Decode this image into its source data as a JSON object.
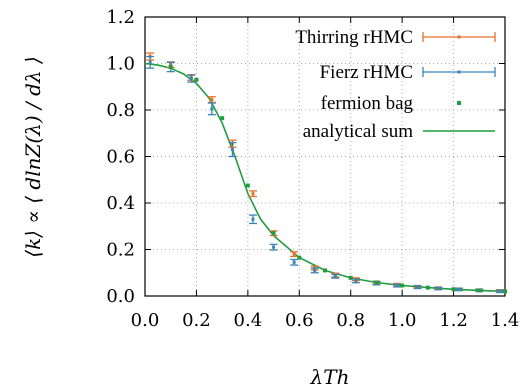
{
  "chart_data": {
    "type": "scatter",
    "xlabel": "λTh",
    "ylabel": "⟨k⟩ ∝ ⟨ dlnZ(λ) / dλ ⟩",
    "xlim": [
      0.0,
      1.4
    ],
    "ylim": [
      0.0,
      1.2
    ],
    "x_ticks": [
      "0.0",
      "0.2",
      "0.4",
      "0.6",
      "0.8",
      "1.0",
      "1.2",
      "1.4"
    ],
    "y_ticks": [
      "0.0",
      "0.2",
      "0.4",
      "0.6",
      "0.8",
      "1.0",
      "1.2"
    ],
    "grid": "dotted",
    "legend_position": "top-right",
    "series": [
      {
        "name": "Thirring rHMC",
        "kind": "errorbar",
        "color": "#e8702a",
        "x": [
          0.02,
          0.1,
          0.18,
          0.26,
          0.34,
          0.42,
          0.5,
          0.58,
          0.66,
          0.74,
          0.82,
          0.9,
          0.98,
          1.06,
          1.14,
          1.22,
          1.3,
          1.38
        ],
        "y": [
          1.03,
          0.995,
          0.94,
          0.845,
          0.655,
          0.44,
          0.27,
          0.18,
          0.12,
          0.09,
          0.072,
          0.058,
          0.048,
          0.04,
          0.034,
          0.029,
          0.025,
          0.022
        ],
        "err": [
          0.015,
          0.012,
          0.012,
          0.012,
          0.015,
          0.012,
          0.01,
          0.01,
          0.008,
          0.008,
          0.006,
          0.006,
          0.006,
          0.005,
          0.005,
          0.005,
          0.005,
          0.005
        ]
      },
      {
        "name": "Fierz rHMC",
        "kind": "errorbar",
        "color": "#3b84b6",
        "x": [
          0.02,
          0.1,
          0.18,
          0.26,
          0.34,
          0.42,
          0.5,
          0.58,
          0.66,
          0.74,
          0.82,
          0.9,
          0.98,
          1.06,
          1.14,
          1.22,
          1.3,
          1.38
        ],
        "y": [
          1.005,
          0.985,
          0.935,
          0.805,
          0.63,
          0.33,
          0.21,
          0.145,
          0.11,
          0.085,
          0.065,
          0.055,
          0.045,
          0.038,
          0.032,
          0.028,
          0.024,
          0.02
        ],
        "err": [
          0.025,
          0.02,
          0.015,
          0.025,
          0.03,
          0.018,
          0.012,
          0.012,
          0.01,
          0.008,
          0.008,
          0.007,
          0.006,
          0.006,
          0.005,
          0.005,
          0.005,
          0.005
        ]
      },
      {
        "name": "fermion bag",
        "kind": "points",
        "color": "#1f9e3f",
        "x": [
          0.1,
          0.2,
          0.3,
          0.4,
          0.5,
          0.6,
          0.7,
          0.8,
          0.9,
          1.0,
          1.1,
          1.2,
          1.3,
          1.4
        ],
        "y": [
          0.985,
          0.93,
          0.765,
          0.475,
          0.27,
          0.165,
          0.11,
          0.078,
          0.058,
          0.045,
          0.036,
          0.029,
          0.024,
          0.02
        ]
      },
      {
        "name": "analytical sum",
        "kind": "line",
        "color": "#1f9e3f",
        "x": [
          0.0,
          0.05,
          0.1,
          0.15,
          0.2,
          0.25,
          0.3,
          0.35,
          0.4,
          0.45,
          0.5,
          0.6,
          0.7,
          0.8,
          0.9,
          1.0,
          1.1,
          1.2,
          1.3,
          1.4
        ],
        "y": [
          1.0,
          0.993,
          0.98,
          0.955,
          0.915,
          0.85,
          0.745,
          0.6,
          0.44,
          0.33,
          0.26,
          0.165,
          0.11,
          0.078,
          0.058,
          0.045,
          0.036,
          0.029,
          0.024,
          0.02
        ]
      }
    ]
  }
}
